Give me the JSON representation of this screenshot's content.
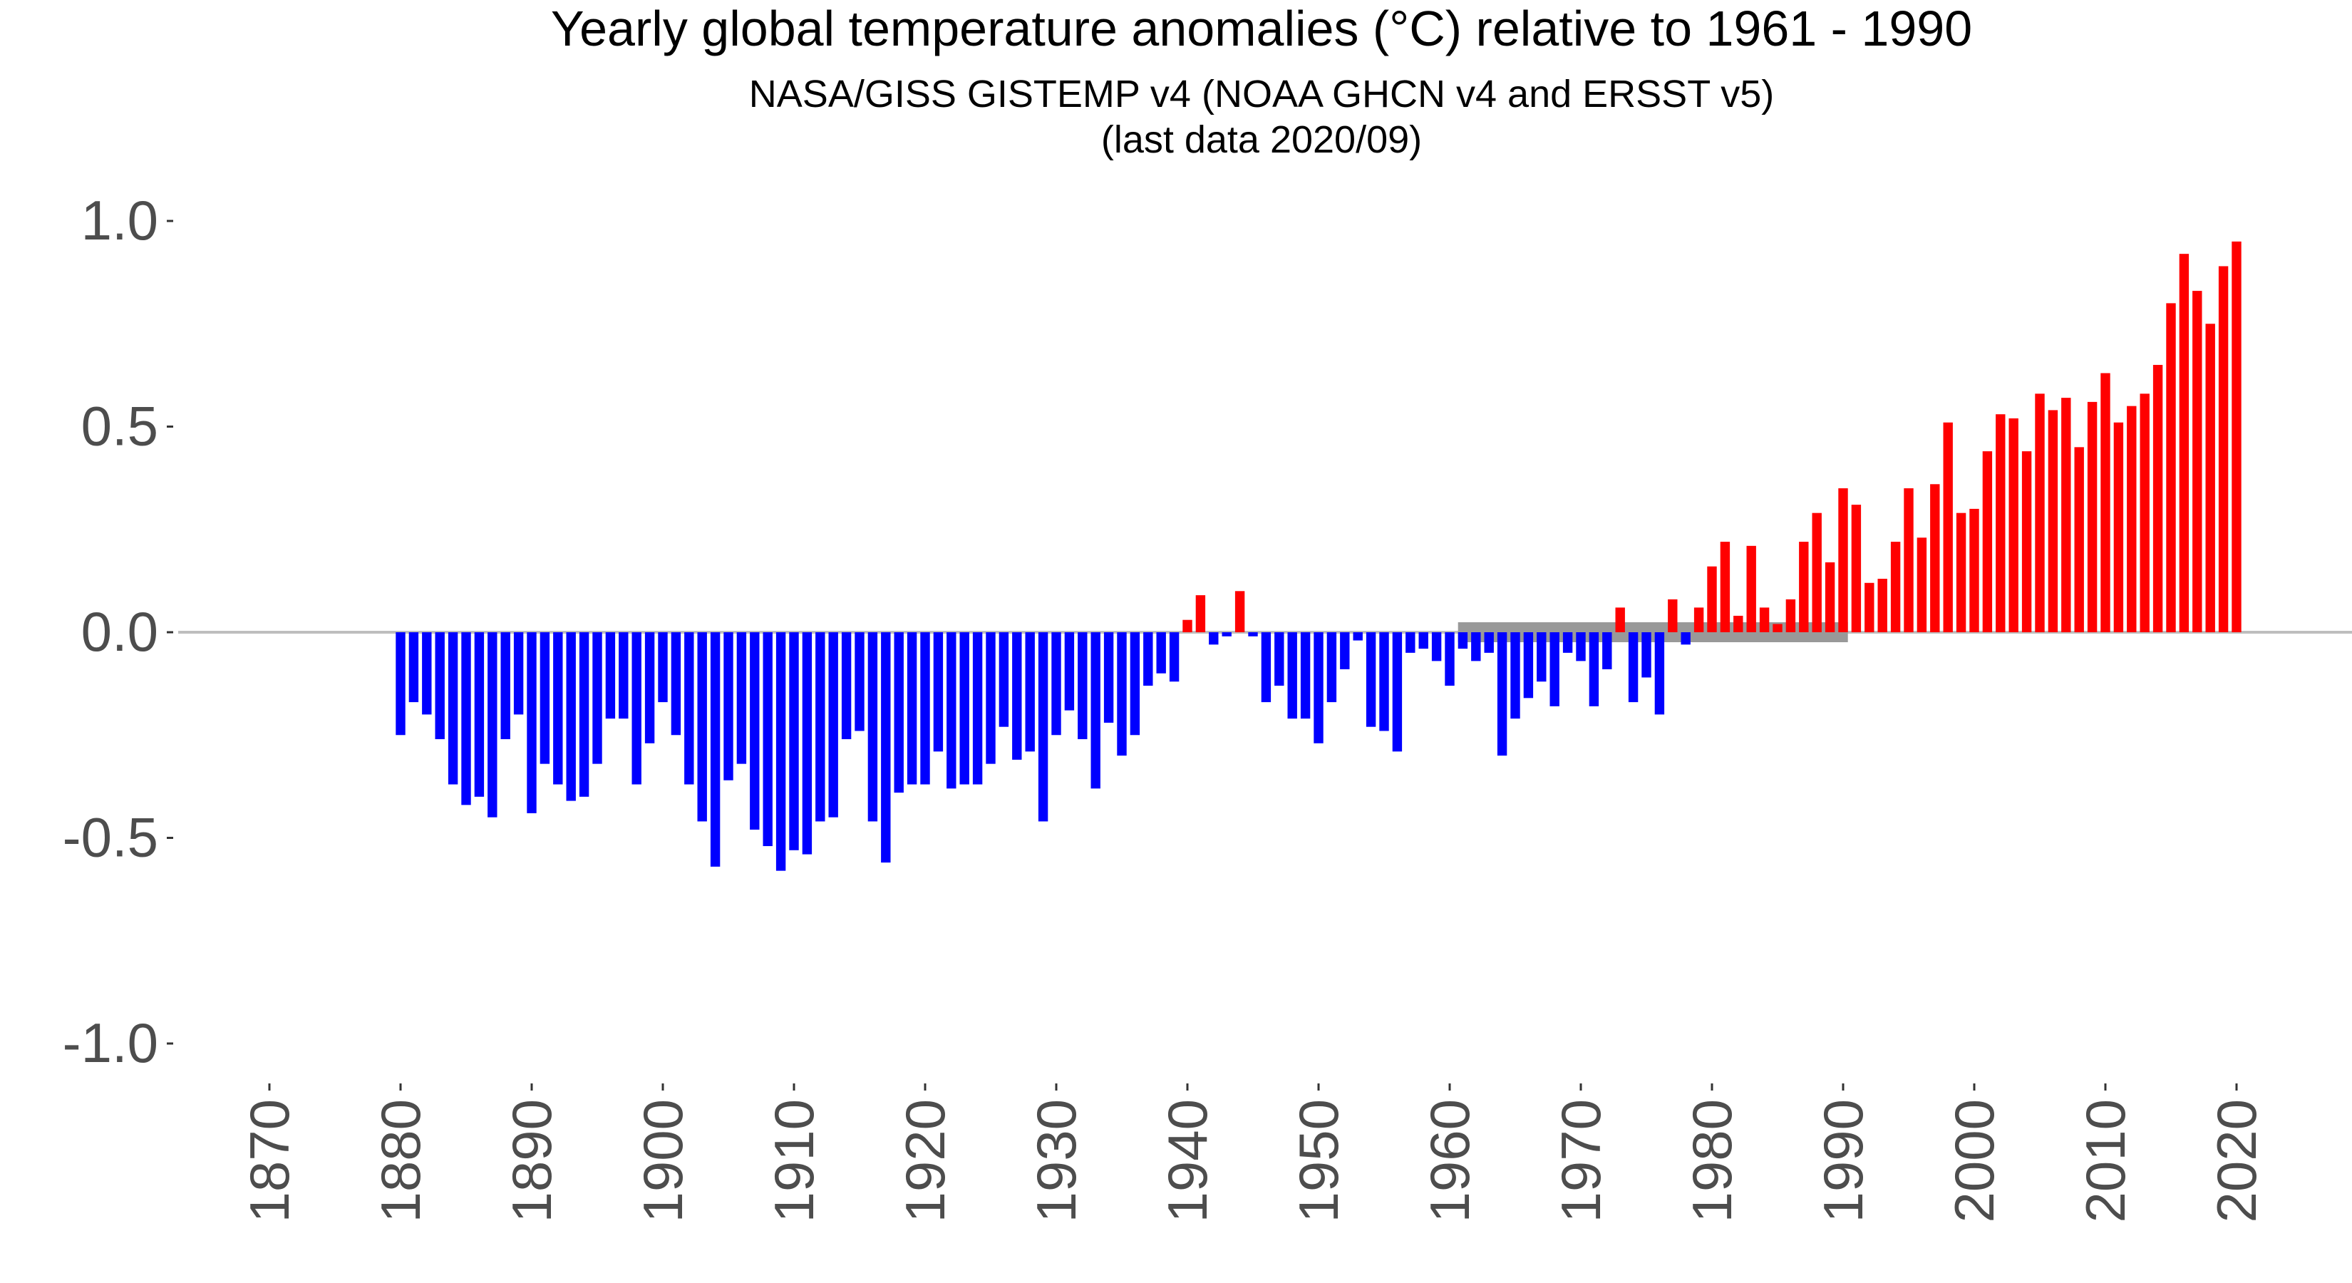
{
  "chart_data": {
    "type": "bar",
    "title": "Yearly global temperature anomalies (°C)  relative to 1961 - 1990",
    "subtitle": "NASA/GISS GISTEMP v4 (NOAA GHCN v4 and ERSST v5)",
    "subtitle2": "(last data 2020/09)",
    "xlabel": "",
    "ylabel": "",
    "xlim": [
      1866,
      2024
    ],
    "ylim": [
      -1.0,
      1.0
    ],
    "yticks": [
      -1.0,
      -0.5,
      0.0,
      0.5,
      1.0
    ],
    "ytick_labels": [
      "-1.0",
      "-0.5",
      "0.0",
      "0.5",
      "1.0"
    ],
    "xticks": [
      1870,
      1880,
      1890,
      1900,
      1910,
      1920,
      1930,
      1940,
      1950,
      1960,
      1970,
      1980,
      1990,
      2000,
      2010,
      2020
    ],
    "xtick_labels": [
      "1870",
      "1880",
      "1890",
      "1900",
      "1910",
      "1920",
      "1930",
      "1940",
      "1950",
      "1960",
      "1970",
      "1980",
      "1990",
      "2000",
      "2010",
      "2020"
    ],
    "grid": false,
    "legend": "none",
    "colors": {
      "negative": "#0000ff",
      "positive": "#ff0000",
      "baseline_period": "#999999",
      "zero_line": "#bebebe"
    },
    "reference_period": {
      "start": 1961,
      "end": 1990
    },
    "years": [
      1880,
      1881,
      1882,
      1883,
      1884,
      1885,
      1886,
      1887,
      1888,
      1889,
      1890,
      1891,
      1892,
      1893,
      1894,
      1895,
      1896,
      1897,
      1898,
      1899,
      1900,
      1901,
      1902,
      1903,
      1904,
      1905,
      1906,
      1907,
      1908,
      1909,
      1910,
      1911,
      1912,
      1913,
      1914,
      1915,
      1916,
      1917,
      1918,
      1919,
      1920,
      1921,
      1922,
      1923,
      1924,
      1925,
      1926,
      1927,
      1928,
      1929,
      1930,
      1931,
      1932,
      1933,
      1934,
      1935,
      1936,
      1937,
      1938,
      1939,
      1940,
      1941,
      1942,
      1943,
      1944,
      1945,
      1946,
      1947,
      1948,
      1949,
      1950,
      1951,
      1952,
      1953,
      1954,
      1955,
      1956,
      1957,
      1958,
      1959,
      1960,
      1961,
      1962,
      1963,
      1964,
      1965,
      1966,
      1967,
      1968,
      1969,
      1970,
      1971,
      1972,
      1973,
      1974,
      1975,
      1976,
      1977,
      1978,
      1979,
      1980,
      1981,
      1982,
      1983,
      1984,
      1985,
      1986,
      1987,
      1988,
      1989,
      1990,
      1991,
      1992,
      1993,
      1994,
      1995,
      1996,
      1997,
      1998,
      1999,
      2000,
      2001,
      2002,
      2003,
      2004,
      2005,
      2006,
      2007,
      2008,
      2009,
      2010,
      2011,
      2012,
      2013,
      2014,
      2015,
      2016,
      2017,
      2018,
      2019,
      2020
    ],
    "values": [
      -0.25,
      -0.17,
      -0.2,
      -0.26,
      -0.37,
      -0.42,
      -0.4,
      -0.45,
      -0.26,
      -0.2,
      -0.44,
      -0.32,
      -0.37,
      -0.41,
      -0.4,
      -0.32,
      -0.21,
      -0.21,
      -0.37,
      -0.27,
      -0.17,
      -0.25,
      -0.37,
      -0.46,
      -0.57,
      -0.36,
      -0.32,
      -0.48,
      -0.52,
      -0.58,
      -0.53,
      -0.54,
      -0.46,
      -0.45,
      -0.26,
      -0.24,
      -0.46,
      -0.56,
      -0.39,
      -0.37,
      -0.37,
      -0.29,
      -0.38,
      -0.37,
      -0.37,
      -0.32,
      -0.23,
      -0.31,
      -0.29,
      -0.46,
      -0.25,
      -0.19,
      -0.26,
      -0.38,
      -0.22,
      -0.3,
      -0.25,
      -0.13,
      -0.1,
      -0.12,
      0.03,
      0.09,
      -0.03,
      -0.01,
      0.1,
      -0.01,
      -0.17,
      -0.13,
      -0.21,
      -0.21,
      -0.27,
      -0.17,
      -0.09,
      -0.02,
      -0.23,
      -0.24,
      -0.29,
      -0.05,
      -0.04,
      -0.07,
      -0.13,
      -0.04,
      -0.07,
      -0.05,
      -0.3,
      -0.21,
      -0.16,
      -0.12,
      -0.18,
      -0.05,
      -0.07,
      -0.18,
      -0.09,
      0.06,
      -0.17,
      -0.11,
      -0.2,
      0.08,
      -0.03,
      0.06,
      0.16,
      0.22,
      0.04,
      0.21,
      0.06,
      0.02,
      0.08,
      0.22,
      0.29,
      0.17,
      0.35,
      0.31,
      0.12,
      0.13,
      0.22,
      0.35,
      0.23,
      0.36,
      0.51,
      0.29,
      0.3,
      0.44,
      0.53,
      0.52,
      0.44,
      0.58,
      0.54,
      0.57,
      0.45,
      0.56,
      0.63,
      0.51,
      0.55,
      0.58,
      0.65,
      0.8,
      0.92,
      0.83,
      0.75,
      0.89,
      0.95
    ]
  }
}
